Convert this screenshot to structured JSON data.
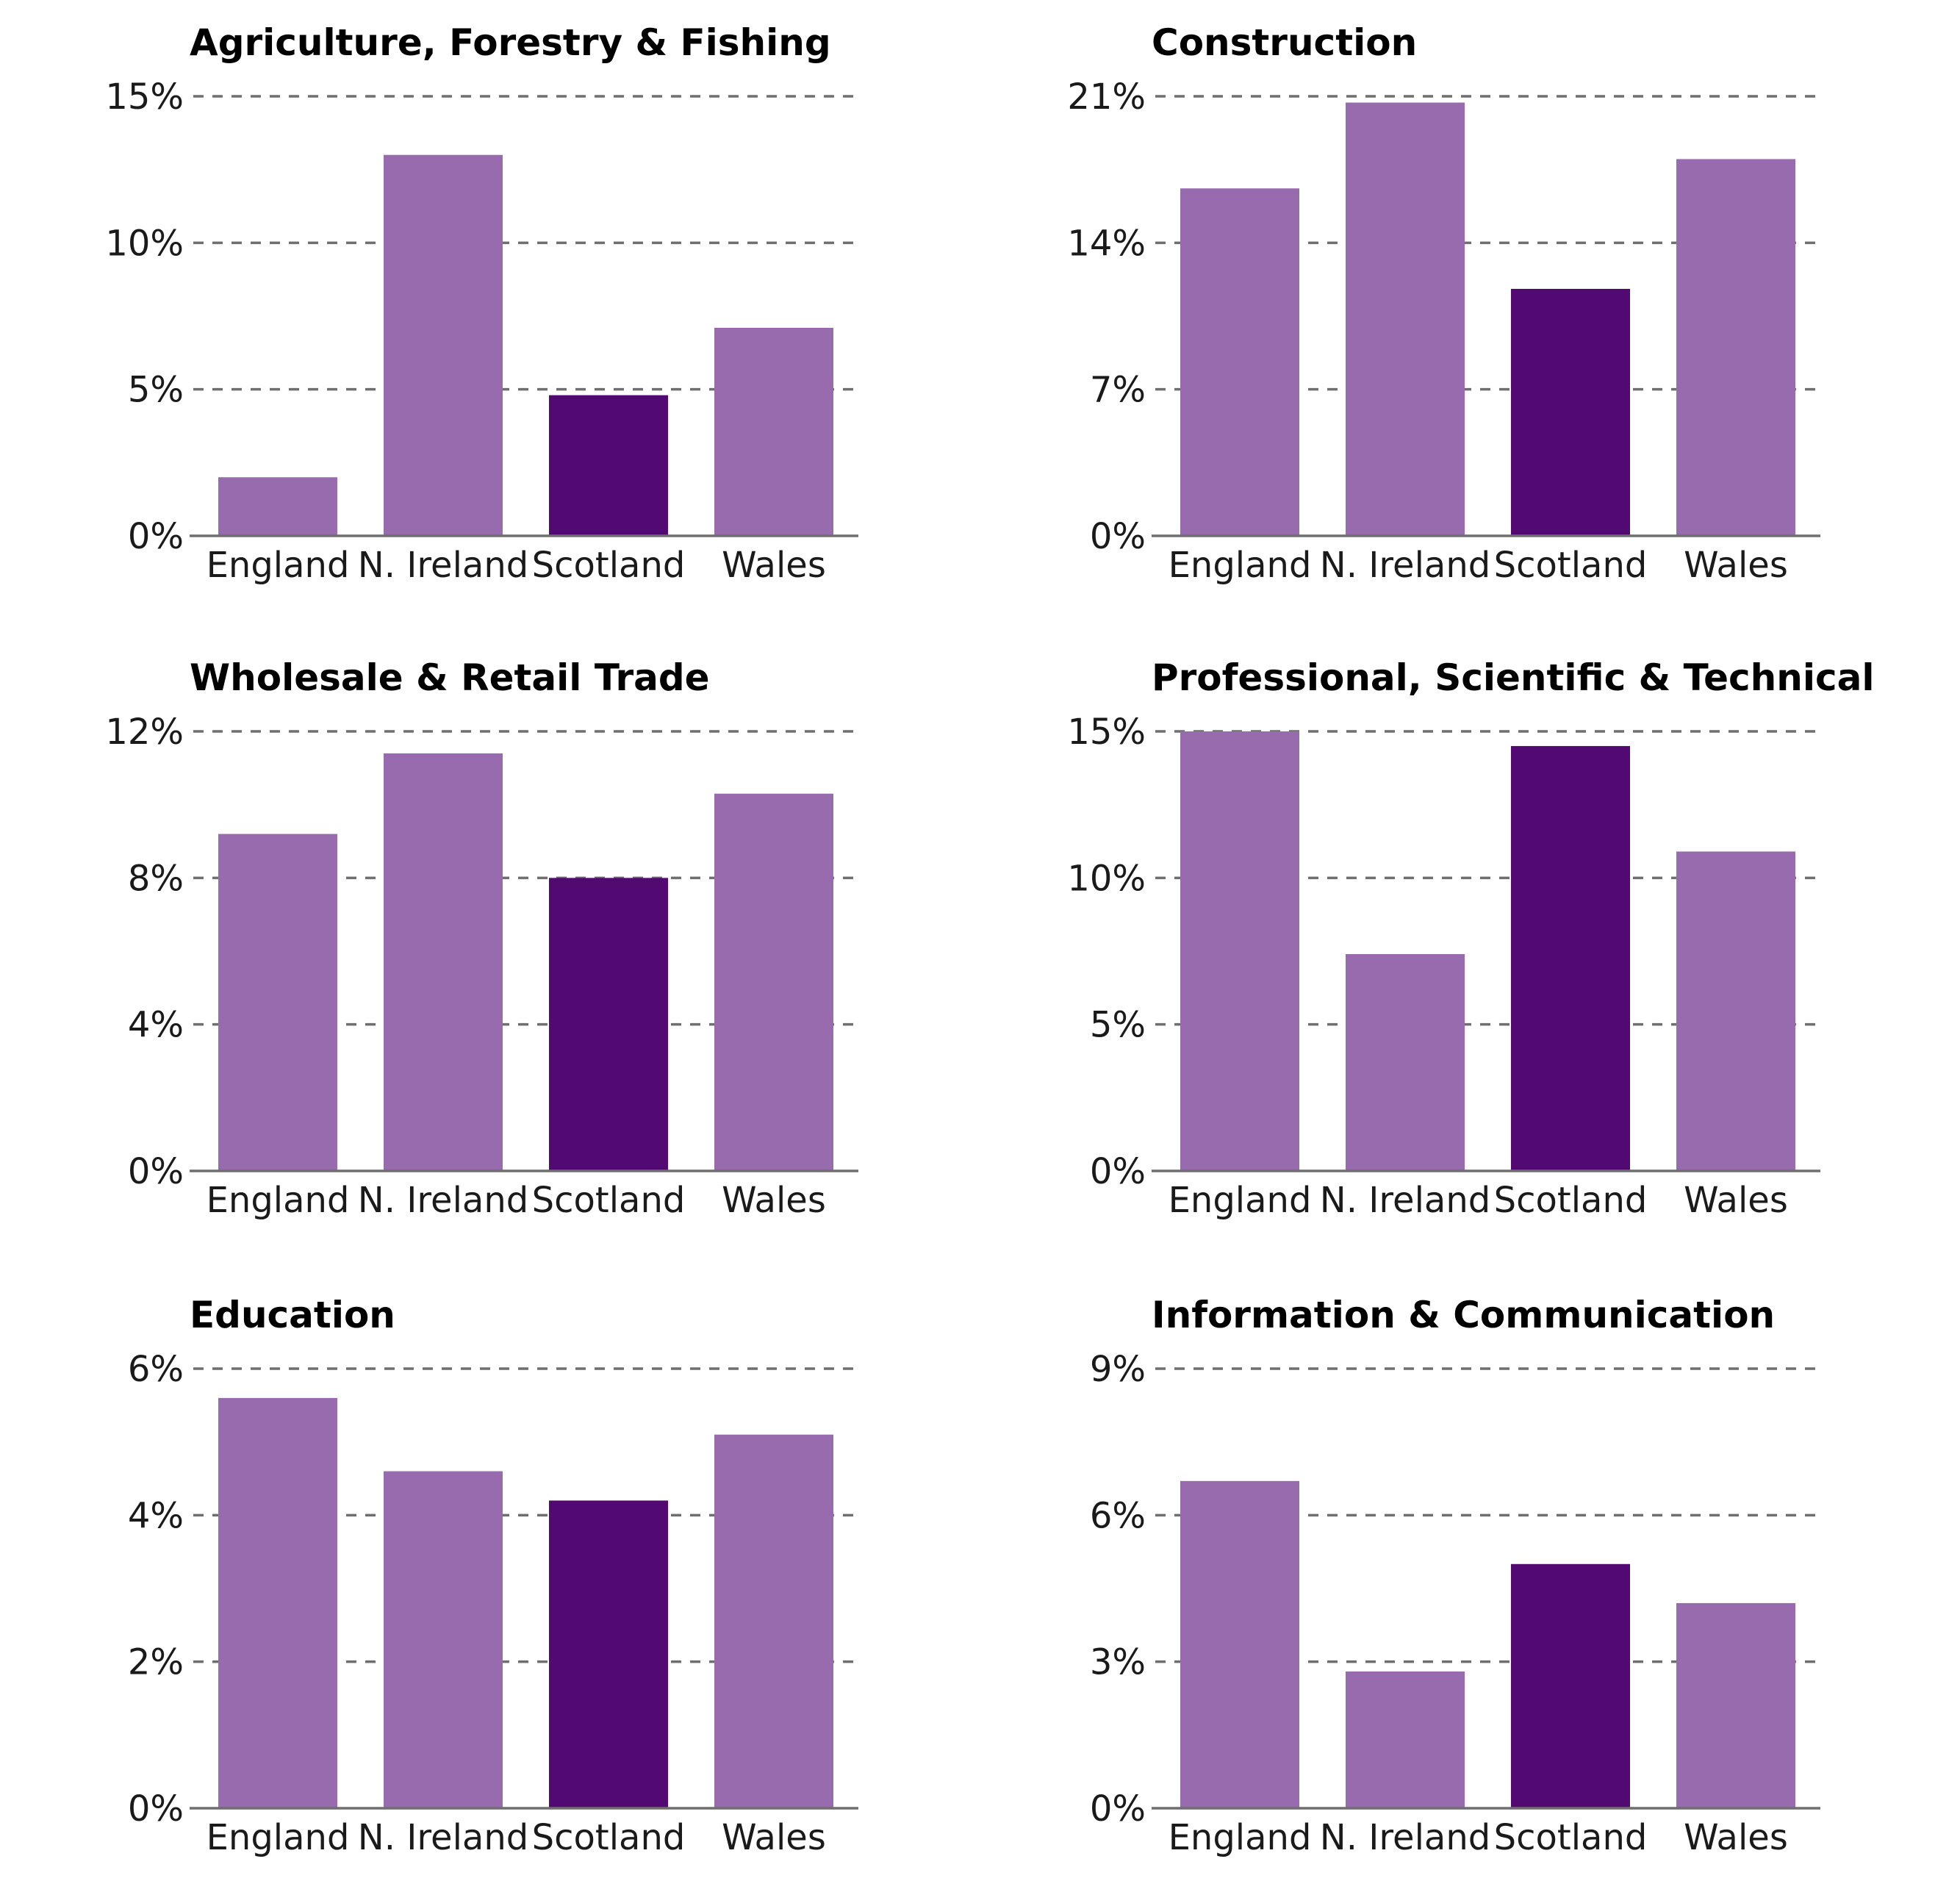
{
  "colors": {
    "bar": "#976bae",
    "highlight": "#520a72"
  },
  "chart_data": [
    {
      "type": "bar",
      "title": "Agriculture, Forestry & Fishing",
      "categories": [
        "England",
        "N. Ireland",
        "Scotland",
        "Wales"
      ],
      "values": [
        2,
        13,
        4.8,
        7.1
      ],
      "ylim": [
        0,
        15
      ],
      "yticks": [
        0,
        5,
        10,
        15
      ],
      "ytick_labels": [
        "0%",
        "5%",
        "10%",
        "15%"
      ],
      "highlight": "Scotland"
    },
    {
      "type": "bar",
      "title": "Construction",
      "categories": [
        "England",
        "N. Ireland",
        "Scotland",
        "Wales"
      ],
      "values": [
        16.6,
        20.7,
        11.8,
        18
      ],
      "ylim": [
        0,
        21
      ],
      "yticks": [
        0,
        7,
        14,
        21
      ],
      "ytick_labels": [
        "0%",
        "7%",
        "14%",
        "21%"
      ],
      "highlight": "Scotland"
    },
    {
      "type": "bar",
      "title": "Wholesale & Retail Trade",
      "categories": [
        "England",
        "N. Ireland",
        "Scotland",
        "Wales"
      ],
      "values": [
        9.2,
        11.4,
        8,
        10.3
      ],
      "ylim": [
        0,
        12
      ],
      "yticks": [
        0,
        4,
        8,
        12
      ],
      "ytick_labels": [
        "0%",
        "4%",
        "8%",
        "12%"
      ],
      "highlight": "Scotland"
    },
    {
      "type": "bar",
      "title": "Professional, Scientific & Technical",
      "categories": [
        "England",
        "N. Ireland",
        "Scotland",
        "Wales"
      ],
      "values": [
        15,
        7.4,
        14.5,
        10.9
      ],
      "ylim": [
        0,
        15
      ],
      "yticks": [
        0,
        5,
        10,
        15
      ],
      "ytick_labels": [
        "0%",
        "5%",
        "10%",
        "15%"
      ],
      "highlight": "Scotland"
    },
    {
      "type": "bar",
      "title": "Education",
      "categories": [
        "England",
        "N. Ireland",
        "Scotland",
        "Wales"
      ],
      "values": [
        5.6,
        4.6,
        4.2,
        5.1
      ],
      "ylim": [
        0,
        6
      ],
      "yticks": [
        0,
        2,
        4,
        6
      ],
      "ytick_labels": [
        "0%",
        "2%",
        "4%",
        "6%"
      ],
      "highlight": "Scotland"
    },
    {
      "type": "bar",
      "title": "Information & Communication",
      "categories": [
        "England",
        "N. Ireland",
        "Scotland",
        "Wales"
      ],
      "values": [
        6.7,
        2.8,
        5,
        4.2
      ],
      "ylim": [
        0,
        9
      ],
      "yticks": [
        0,
        3,
        6,
        9
      ],
      "ytick_labels": [
        "0%",
        "3%",
        "6%",
        "9%"
      ],
      "highlight": "Scotland"
    }
  ]
}
